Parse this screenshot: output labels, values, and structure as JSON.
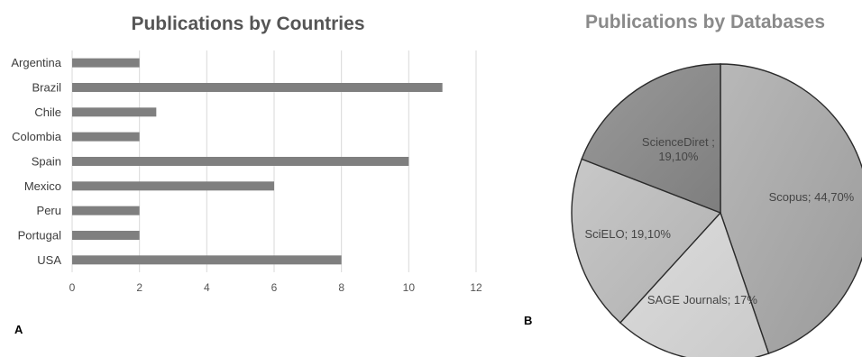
{
  "chart_data": [
    {
      "type": "bar",
      "orientation": "horizontal",
      "title": "Publications by Countries",
      "panel_label": "A",
      "categories": [
        "Argentina",
        "Brazil",
        "Chile",
        "Colombia",
        "Spain",
        "Mexico",
        "Peru",
        "Portugal",
        "USA"
      ],
      "values": [
        2,
        11,
        2.5,
        2,
        10,
        6,
        2,
        2,
        8
      ],
      "xlim": [
        0,
        12
      ],
      "xticks": [
        "0",
        "2",
        "4",
        "6",
        "8",
        "10",
        "12"
      ],
      "grid": true,
      "legend": "none",
      "bar_color": "#7f7f7f"
    },
    {
      "type": "pie",
      "title": "Publications by Databases",
      "panel_label": "B",
      "slices": [
        {
          "name": "Scopus",
          "label": "Scopus; 44,70%",
          "value": 44.7,
          "color": "#a6a6a6"
        },
        {
          "name": "SAGE Journals",
          "label": "SAGE Journals; 17%",
          "value": 17.0,
          "color": "#d4d4d4"
        },
        {
          "name": "SciELO",
          "label": "SciELO; 19,10%",
          "value": 19.1,
          "color": "#bdbdbd"
        },
        {
          "name": "ScienceDiret",
          "label": "ScienceDiret ; 19,10%",
          "label_lines": [
            "ScienceDiret ;",
            "19,10%"
          ],
          "value": 19.1,
          "color": "#8c8c8c"
        }
      ],
      "legend": "none"
    }
  ]
}
